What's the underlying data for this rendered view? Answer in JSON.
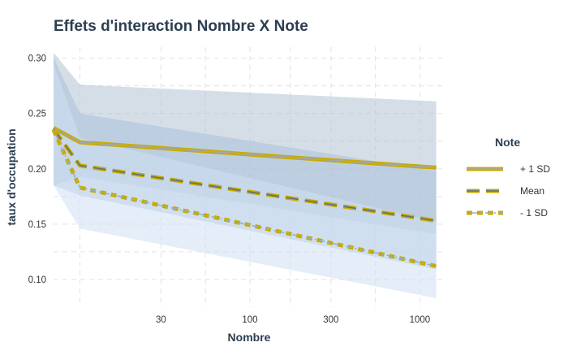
{
  "chart_data": {
    "type": "line",
    "title": "Effets d'interaction Nombre X Note",
    "xlabel": "Nombre",
    "ylabel": "taux d'occupation",
    "x_scale": "log10",
    "xlim": [
      7,
      1400
    ],
    "ylim": [
      0.075,
      0.31
    ],
    "x_ticks": [
      {
        "value": 30,
        "label": "30"
      },
      {
        "value": 100,
        "label": "100"
      },
      {
        "value": 300,
        "label": "300"
      },
      {
        "value": 1000,
        "label": "1000"
      }
    ],
    "y_ticks": [
      {
        "value": 0.1,
        "label": "0.10"
      },
      {
        "value": 0.15,
        "label": "0.15"
      },
      {
        "value": 0.2,
        "label": "0.20"
      },
      {
        "value": 0.25,
        "label": "0.25"
      },
      {
        "value": 0.3,
        "label": "0.30"
      }
    ],
    "grid": true,
    "legend": {
      "title": "Note",
      "position": "right"
    },
    "series": [
      {
        "name": "+ 1 SD",
        "x": [
          7,
          10,
          1250
        ],
        "y": [
          0.237,
          0.224,
          0.201
        ],
        "lower": [
          0.185,
          0.193,
          0.141
        ],
        "upper": [
          0.305,
          0.276,
          0.261
        ],
        "line_color": "#c9aa00",
        "center_color": "#9fa8b3",
        "band_color": "#b3c2d1",
        "dash": "solid"
      },
      {
        "name": "Mean",
        "x": [
          7,
          10,
          1250
        ],
        "y": [
          0.236,
          0.203,
          0.153
        ],
        "lower": [
          0.185,
          0.176,
          0.109
        ],
        "upper": [
          0.3,
          0.25,
          0.198
        ],
        "line_color": "#c9aa00",
        "center_color": "#5a6f8a",
        "band_color": "#a9c1dc",
        "dash": "long"
      },
      {
        "name": "- 1 SD",
        "x": [
          7,
          10,
          1250
        ],
        "y": [
          0.235,
          0.183,
          0.112
        ],
        "lower": [
          0.185,
          0.146,
          0.083
        ],
        "upper": [
          0.295,
          0.228,
          0.152
        ],
        "line_color": "#c9aa00",
        "center_color": "#8eb1d3",
        "band_color": "#cfe0f2",
        "dash": "short"
      }
    ]
  }
}
